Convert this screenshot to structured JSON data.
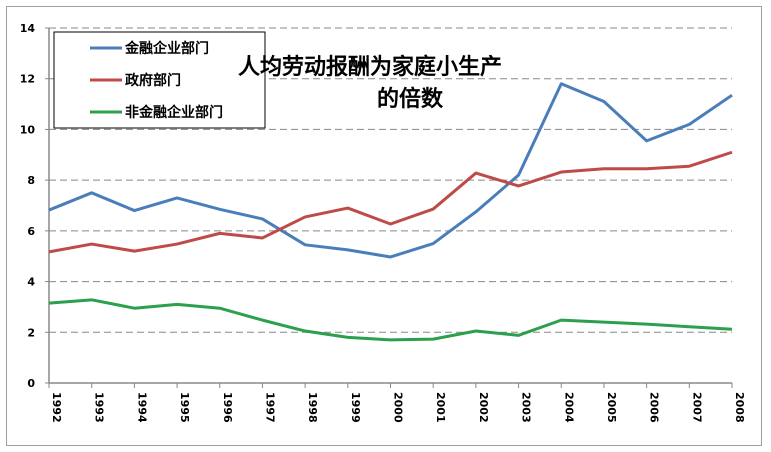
{
  "chart_data": {
    "type": "line",
    "title": [
      "人均劳动报酬为家庭小生产",
      "的倍数"
    ],
    "xlabel": "",
    "ylabel": "",
    "x": [
      "1992",
      "1993",
      "1994",
      "1995",
      "1996",
      "1997",
      "1998",
      "1999",
      "2000",
      "2001",
      "2002",
      "2003",
      "2004",
      "2005",
      "2006",
      "2007",
      "2008"
    ],
    "ylim": [
      0,
      14
    ],
    "yticks": [
      0,
      2,
      4,
      6,
      8,
      10,
      12,
      14
    ],
    "grid": true,
    "legend_position": "top-left",
    "series": [
      {
        "name": "金融企业部门",
        "color": "#4a7ebb",
        "values": [
          6.82,
          7.5,
          6.8,
          7.3,
          6.85,
          6.47,
          5.45,
          5.25,
          4.97,
          5.5,
          6.75,
          8.2,
          11.8,
          11.1,
          9.55,
          10.2,
          11.35
        ]
      },
      {
        "name": "政府部门",
        "color": "#be4b48",
        "values": [
          5.17,
          5.48,
          5.2,
          5.48,
          5.9,
          5.72,
          6.55,
          6.9,
          6.27,
          6.86,
          8.28,
          7.77,
          8.32,
          8.45,
          8.45,
          8.55,
          9.1
        ]
      },
      {
        "name": "非金融企业部门",
        "color": "#2ca04c",
        "values": [
          3.15,
          3.28,
          2.95,
          3.1,
          2.95,
          2.48,
          2.05,
          1.8,
          1.7,
          1.73,
          2.05,
          1.88,
          2.48,
          2.4,
          2.32,
          2.22,
          2.12
        ]
      }
    ]
  }
}
